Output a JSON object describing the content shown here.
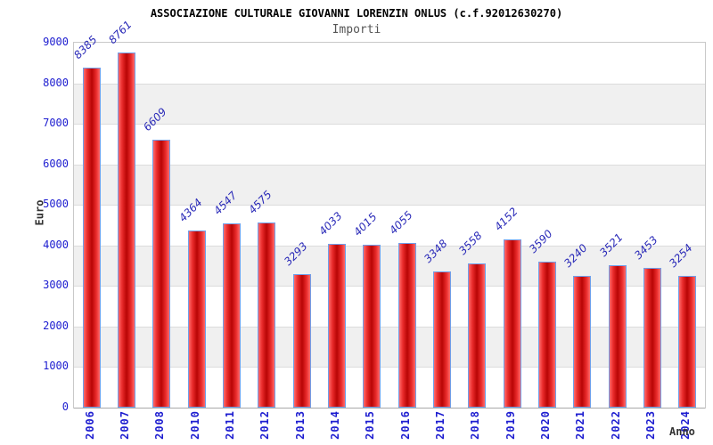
{
  "title": "ASSOCIAZIONE CULTURALE GIOVANNI LORENZIN ONLUS (c.f.92012630270)",
  "subtitle": "Importi",
  "chart_data": {
    "type": "bar",
    "title": "ASSOCIAZIONE CULTURALE GIOVANNI LORENZIN ONLUS (c.f.92012630270)",
    "subtitle": "Importi",
    "xlabel": "Anno",
    "ylabel": "Euro",
    "categories": [
      "2006",
      "2007",
      "2008",
      "2010",
      "2011",
      "2012",
      "2013",
      "2014",
      "2015",
      "2016",
      "2017",
      "2018",
      "2019",
      "2020",
      "2021",
      "2022",
      "2023",
      "2024"
    ],
    "values": [
      8385,
      8761,
      6609,
      4364,
      4547,
      4575,
      3293,
      4033,
      4015,
      4055,
      3348,
      3558,
      4152,
      3590,
      3240,
      3521,
      3453,
      3254
    ],
    "ylim": [
      0,
      9000
    ],
    "ytick_step": 1000,
    "yticks": [
      "9000",
      "8000",
      "7000",
      "6000",
      "5000",
      "4000",
      "3000",
      "2000",
      "1000",
      "0"
    ],
    "grid": true,
    "legend": "none",
    "band_alternate": true,
    "colors": {
      "bar_fill_light": "#ff6b6b",
      "bar_fill_dark": "#b80505",
      "bar_border": "#6f9fea",
      "tick_text": "#1d1dd0",
      "value_text": "#2a2ab8",
      "band_gray": "#f0f0f0",
      "band_white": "#ffffff",
      "grid_line": "#dcdcdc",
      "title_text": "#000000",
      "subtitle_text": "#555555",
      "axis_title_text": "#333333"
    }
  }
}
